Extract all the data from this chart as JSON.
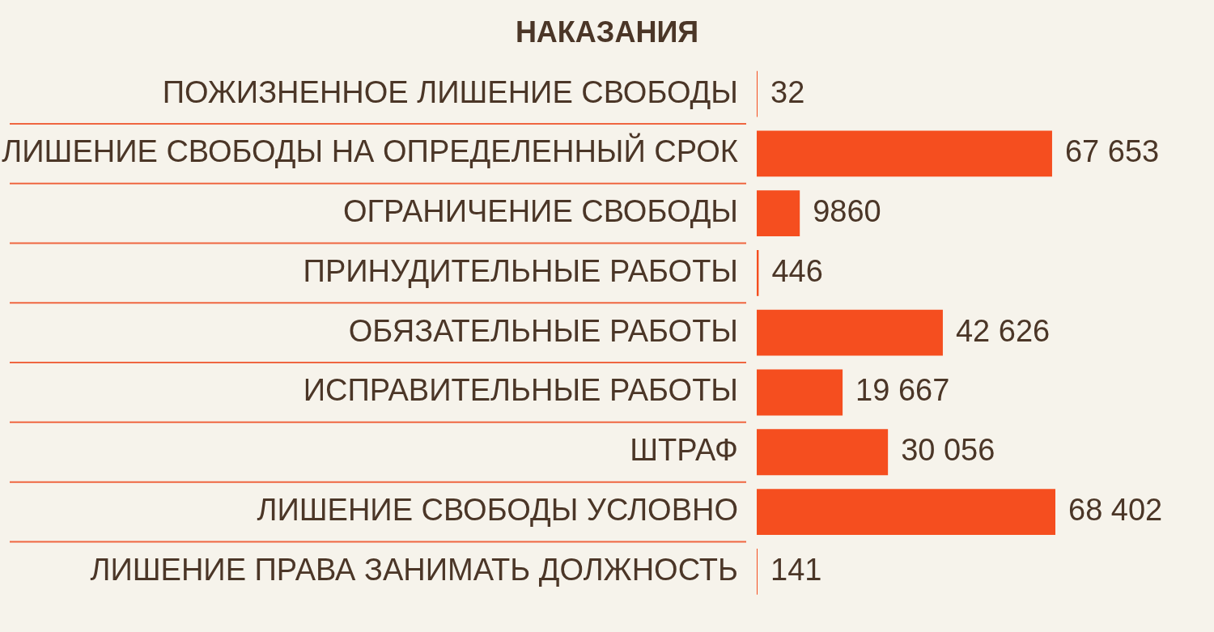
{
  "chart_data": {
    "type": "bar",
    "orientation": "horizontal",
    "title": "НАКАЗАНИЯ",
    "categories": [
      "ПОЖИЗНЕННОЕ ЛИШЕНИЕ СВОБОДЫ",
      "ЛИШЕНИЕ СВОБОДЫ НА ОПРЕДЕЛЕННЫЙ СРОК",
      "ОГРАНИЧЕНИЕ СВОБОДЫ",
      "ПРИНУДИТЕЛЬНЫЕ РАБОТЫ",
      "ОБЯЗАТЕЛЬНЫЕ РАБОТЫ",
      "ИСПРАВИТЕЛЬНЫЕ РАБОТЫ",
      "ШТРАФ",
      "ЛИШЕНИЕ СВОБОДЫ УСЛОВНО",
      "ЛИШЕНИЕ ПРАВА ЗАНИМАТЬ ДОЛЖНОСТЬ"
    ],
    "values": [
      32,
      67653,
      9860,
      446,
      42626,
      19667,
      30056,
      68402,
      141
    ],
    "value_labels": [
      "32",
      "67 653",
      "9860",
      "446",
      "42 626",
      "19 667",
      "30 056",
      "68 402",
      "141"
    ],
    "color": "#f54e1f",
    "grid": "y"
  }
}
